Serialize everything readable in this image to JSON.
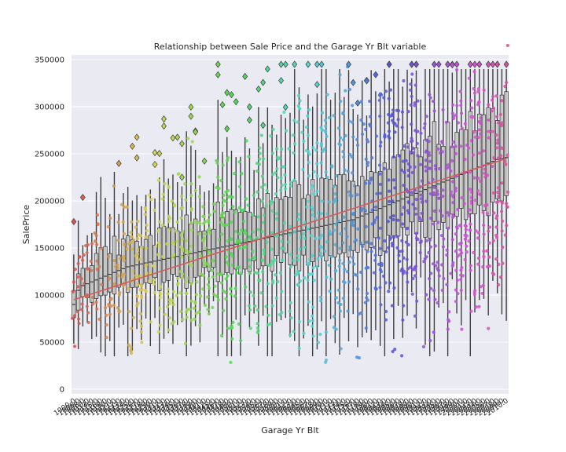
{
  "chart_data": {
    "type": "boxplot",
    "title": "Relationship between Sale Price and the Garage Yr Blt variable",
    "xlabel": "Garage Yr Blt",
    "ylabel": "SalePrice",
    "ylim": [
      -5000,
      355000
    ],
    "yticks": [
      0,
      50000,
      100000,
      150000,
      200000,
      250000,
      300000,
      350000
    ],
    "grid": true,
    "background": "#eaeaf2",
    "categories": [
      "1900.0",
      "1906.0",
      "1908.0",
      "1910.0",
      "1914.0",
      "1915.0",
      "1916.0",
      "1918.0",
      "1920.0",
      "1921.0",
      "1922.0",
      "1923.0",
      "1924.0",
      "1925.0",
      "1926.0",
      "1927.0",
      "1928.0",
      "1929.0",
      "1930.0",
      "1931.0",
      "1932.0",
      "1933.0",
      "1934.0",
      "1935.0",
      "1936.0",
      "1937.0",
      "1938.0",
      "1939.0",
      "1940.0",
      "1941.0",
      "1942.0",
      "1945.0",
      "1946.0",
      "1947.0",
      "1948.0",
      "1949.0",
      "1950.0",
      "1951.0",
      "1952.0",
      "1953.0",
      "1954.0",
      "1955.0",
      "1956.0",
      "1957.0",
      "1958.0",
      "1959.0",
      "1960.0",
      "1961.0",
      "1962.0",
      "1963.0",
      "1964.0",
      "1965.0",
      "1966.0",
      "1967.0",
      "1968.0",
      "1969.0",
      "1970.0",
      "1971.0",
      "1972.0",
      "1973.0",
      "1974.0",
      "1975.0",
      "1976.0",
      "1977.0",
      "1978.0",
      "1979.0",
      "1980.0",
      "1981.0",
      "1982.0",
      "1983.0",
      "1984.0",
      "1985.0",
      "1986.0",
      "1987.0",
      "1988.0",
      "1989.0",
      "1990.0",
      "1991.0",
      "1992.0",
      "1993.0",
      "1994.0",
      "1995.0",
      "1996.0",
      "1997.0",
      "1998.0",
      "1999.0",
      "2000.0",
      "2001.0",
      "2002.0",
      "2003.0",
      "2004.0",
      "2005.0",
      "2006.0",
      "2007.0",
      "2008.0",
      "2009.0",
      "2010.0"
    ],
    "trend": {
      "start_value": 95000,
      "end_value": 245000
    },
    "medians": [
      90000,
      105000,
      110000,
      112000,
      114000,
      116000,
      118000,
      120000,
      122000,
      124000,
      126000,
      128000,
      130000,
      131000,
      132000,
      133000,
      134000,
      135000,
      136000,
      137000,
      138000,
      139000,
      140000,
      141000,
      142000,
      143000,
      144000,
      145000,
      146000,
      147000,
      148000,
      149000,
      150000,
      151000,
      152000,
      153000,
      154000,
      155000,
      156000,
      157000,
      158000,
      159000,
      160000,
      161000,
      162000,
      163000,
      164000,
      165000,
      166000,
      167000,
      168000,
      169000,
      170000,
      171000,
      172000,
      173000,
      174000,
      175000,
      176000,
      177000,
      178000,
      179000,
      180000,
      182000,
      184000,
      186000,
      188000,
      190000,
      192000,
      194000,
      196000,
      198000,
      200000,
      202000,
      204000,
      206000,
      208000,
      210000,
      212000,
      214000,
      216000,
      218000,
      220000,
      222000,
      224000,
      226000,
      228000,
      230000,
      232000,
      234000,
      236000,
      238000,
      240000,
      242000,
      244000,
      245000,
      246000
    ]
  }
}
